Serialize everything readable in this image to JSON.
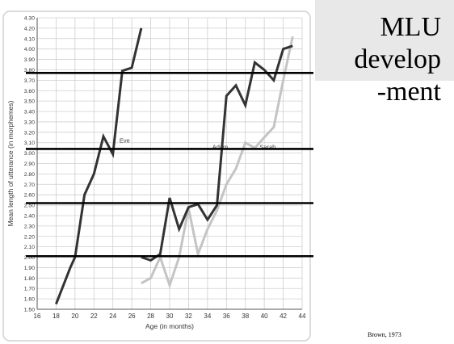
{
  "slide": {
    "title_lines": [
      "MLU",
      "develop",
      "-ment"
    ],
    "citation": "Brown, 1973"
  },
  "chart_data": {
    "type": "line",
    "xlabel": "Age (in months)",
    "ylabel": "Mean length of utterance (in morphemes)",
    "xlim": [
      16,
      44
    ],
    "ylim": [
      1.5,
      4.3
    ],
    "x_ticks": [
      16,
      18,
      20,
      22,
      24,
      26,
      28,
      30,
      32,
      34,
      36,
      38,
      40,
      42,
      44
    ],
    "y_ticks": [
      1.5,
      1.6,
      1.7,
      1.8,
      1.9,
      2.0,
      2.1,
      2.2,
      2.3,
      2.4,
      2.5,
      2.6,
      2.7,
      2.8,
      2.9,
      3.0,
      3.1,
      3.2,
      3.3,
      3.4,
      3.5,
      3.6,
      3.7,
      3.8,
      3.9,
      4.0,
      4.1,
      4.2,
      4.3
    ],
    "y_tick_labels": [
      "1.50",
      "1.60",
      "1.70",
      "1.80",
      "1.90",
      "2.00",
      "2.10",
      "2.20",
      "2.30",
      "2.40",
      "2.50",
      "2.60",
      "2.70",
      "2.80",
      "2.90",
      "3.00",
      "3.10",
      "3.20",
      "3.30",
      "3.40",
      "3.50",
      "3.60",
      "3.70",
      "3.80",
      "3.90",
      "4.00",
      "4.10",
      "4.20",
      "4.30"
    ],
    "grid": true,
    "series": [
      {
        "name": "Eve",
        "color": "#333333",
        "x": [
          18,
          19.5,
          20,
          21,
          22,
          23,
          24,
          25,
          26,
          27
        ],
        "y": [
          1.55,
          1.9,
          2.0,
          2.6,
          2.8,
          3.16,
          2.99,
          3.79,
          3.82,
          4.2
        ]
      },
      {
        "name": "Adam",
        "color": "#333333",
        "x": [
          27,
          28,
          29,
          30,
          31,
          32,
          33,
          34,
          35,
          36,
          37,
          38,
          39,
          40,
          41,
          42,
          43
        ],
        "y": [
          2.0,
          1.97,
          2.03,
          2.57,
          2.27,
          2.48,
          2.51,
          2.36,
          2.5,
          3.55,
          3.65,
          3.46,
          3.87,
          3.8,
          3.7,
          4.0,
          4.03
        ]
      },
      {
        "name": "Sarah",
        "color": "#c4c4c4",
        "x": [
          27,
          28,
          29,
          30,
          31,
          32,
          33,
          34,
          35,
          36,
          37,
          38,
          39,
          40,
          41,
          42,
          43
        ],
        "y": [
          1.75,
          1.8,
          2.0,
          1.73,
          2.0,
          2.47,
          2.03,
          2.27,
          2.45,
          2.7,
          2.85,
          3.1,
          3.05,
          3.15,
          3.25,
          3.7,
          4.12
        ]
      }
    ],
    "annotations": [
      {
        "text": "Eve",
        "x": 24.7,
        "y": 3.1
      },
      {
        "text": "Adam",
        "x": 34.5,
        "y": 3.04
      },
      {
        "text": "Sarah",
        "x": 39.5,
        "y": 3.04
      }
    ],
    "reference_lines_y": [
      3.77,
      3.04,
      2.52,
      2.01
    ]
  }
}
